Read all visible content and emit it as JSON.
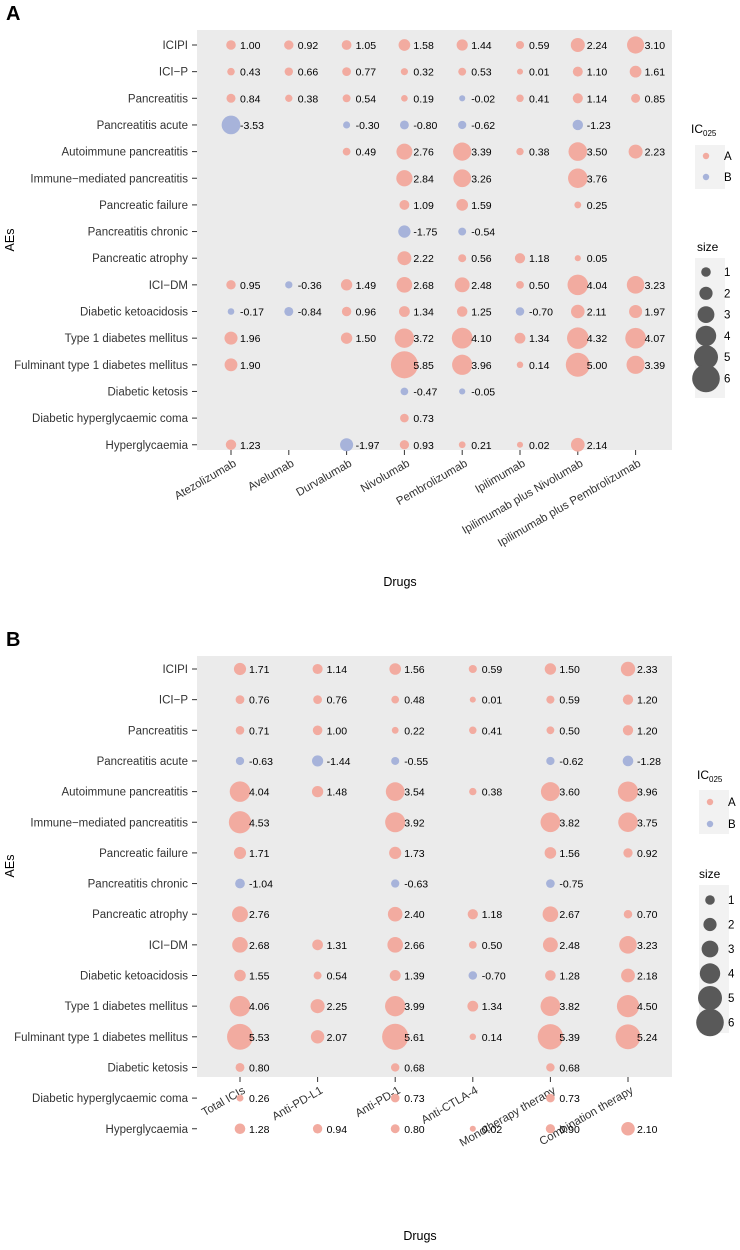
{
  "legend": {
    "color_title": "IC",
    "color_title_sub": "025",
    "groups": [
      "A",
      "B"
    ],
    "group_colors": {
      "A": "#f2aba0",
      "B": "#a7b3da"
    },
    "size_title": "size",
    "size_levels": [
      1,
      2,
      3,
      4,
      5,
      6
    ],
    "size_color": "#595959"
  },
  "chart_data": [
    {
      "panel": "A",
      "type": "scatter",
      "title": "",
      "xlabel": "Drugs",
      "ylabel": "AEs",
      "categories_x": [
        "Atezolizumab",
        "Avelumab",
        "Durvalumab",
        "Nivolumab",
        "Pembrolizumab",
        "Ipilimumab",
        "Ipilimumab plus Nivolumab",
        "Ipilimumab plus Pembrolizumab"
      ],
      "categories_y": [
        "ICIPI",
        "ICI−P",
        "Pancreatitis",
        "Pancreatitis acute",
        "Autoimmune pancreatitis",
        "Immune−mediated pancreatitis",
        "Pancreatic failure",
        "Pancreatitis chronic",
        "Pancreatic atrophy",
        "ICI−DM",
        "Diabetic ketoacidosis",
        "Type 1 diabetes mellitus",
        "Fulminant type 1 diabetes mellitus",
        "Diabetic ketosis",
        "Diabetic hyperglycaemic coma",
        "Hyperglycaemia"
      ],
      "values": [
        [
          1.0,
          0.92,
          1.05,
          1.58,
          1.44,
          0.59,
          2.24,
          3.1
        ],
        [
          0.43,
          0.66,
          0.77,
          0.32,
          0.53,
          0.01,
          1.1,
          1.61
        ],
        [
          0.84,
          0.38,
          0.54,
          0.19,
          -0.02,
          0.41,
          1.14,
          0.85
        ],
        [
          -3.53,
          null,
          -0.3,
          -0.8,
          -0.62,
          null,
          -1.23,
          null
        ],
        [
          null,
          null,
          0.49,
          2.76,
          3.39,
          0.38,
          3.5,
          2.23
        ],
        [
          null,
          null,
          null,
          2.84,
          3.26,
          null,
          3.76,
          null
        ],
        [
          null,
          null,
          null,
          1.09,
          1.59,
          null,
          0.25,
          null
        ],
        [
          null,
          null,
          null,
          -1.75,
          -0.54,
          null,
          null,
          null
        ],
        [
          null,
          null,
          null,
          2.22,
          0.56,
          1.18,
          0.05,
          null
        ],
        [
          0.95,
          -0.36,
          1.49,
          2.68,
          2.48,
          0.5,
          4.04,
          3.23
        ],
        [
          -0.17,
          -0.84,
          0.96,
          1.34,
          1.25,
          -0.7,
          2.11,
          1.97
        ],
        [
          1.96,
          null,
          1.5,
          3.72,
          4.1,
          1.34,
          4.32,
          4.07
        ],
        [
          1.9,
          null,
          null,
          5.85,
          3.96,
          0.14,
          5.0,
          3.39
        ],
        [
          null,
          null,
          null,
          -0.47,
          -0.05,
          null,
          null,
          null
        ],
        [
          null,
          null,
          null,
          0.73,
          null,
          null,
          null,
          null
        ],
        [
          1.23,
          null,
          -1.97,
          0.93,
          0.21,
          0.02,
          2.14,
          null
        ]
      ],
      "labels": [
        [
          "1.00",
          "0.92",
          "1.05",
          "1.58",
          "1.44",
          "0.59",
          "2.24",
          "3.10"
        ],
        [
          "0.43",
          "0.66",
          "0.77",
          "0.32",
          "0.53",
          "0.01",
          "1.10",
          "1.61"
        ],
        [
          "0.84",
          "0.38",
          "0.54",
          "0.19",
          "-0.02",
          "0.41",
          "1.14",
          "0.85"
        ],
        [
          "-3.53",
          null,
          "-0.30",
          "-0.80",
          "-0.62",
          null,
          "-1.23",
          null
        ],
        [
          null,
          null,
          "0.49",
          "2.76",
          "3.39",
          "0.38",
          "3.50",
          "2.23"
        ],
        [
          null,
          null,
          null,
          "2.84",
          "3.26",
          null,
          "3.76",
          null
        ],
        [
          null,
          null,
          null,
          "1.09",
          "1.59",
          null,
          "0.25",
          null
        ],
        [
          null,
          null,
          null,
          "-1.75",
          "-0.54",
          null,
          null,
          null
        ],
        [
          null,
          null,
          null,
          "2.22",
          "0.56",
          "1.18",
          "0.05",
          null
        ],
        [
          "0.95",
          "-0.36",
          "1.49",
          "2.68",
          "2.48",
          "0.50",
          "4.04",
          "3.23"
        ],
        [
          "-0.17",
          "-0.84",
          "0.96",
          "1.34",
          "1.25",
          "-0.70",
          "2.11",
          "1.97"
        ],
        [
          "1.96",
          null,
          "1.50",
          "3.72",
          "4.10",
          "1.34",
          "4.32",
          "4.07"
        ],
        [
          "1.90",
          null,
          null,
          "5.85",
          "3.96",
          "0.14",
          "5.00",
          "3.39"
        ],
        [
          null,
          null,
          null,
          "-0.47",
          "-0.05",
          null,
          null,
          null
        ],
        [
          null,
          null,
          null,
          "0.73",
          null,
          null,
          null,
          null
        ],
        [
          "1.23",
          null,
          "-1.97",
          "0.93",
          "0.21",
          "0.02",
          "2.14",
          null
        ]
      ]
    },
    {
      "panel": "B",
      "type": "scatter",
      "title": "",
      "xlabel": "Drugs",
      "ylabel": "AEs",
      "categories_x": [
        "Total ICIs",
        "Anti-PD-L1",
        "Anti-PD-1",
        "Anti-CTLA-4",
        "Monotherapy therapy",
        "Combination therapy"
      ],
      "categories_y": [
        "ICIPI",
        "ICI−P",
        "Pancreatitis",
        "Pancreatitis acute",
        "Autoimmune pancreatitis",
        "Immune−mediated pancreatitis",
        "Pancreatic failure",
        "Pancreatitis chronic",
        "Pancreatic atrophy",
        "ICI−DM",
        "Diabetic ketoacidosis",
        "Type 1 diabetes mellitus",
        "Fulminant type 1 diabetes mellitus",
        "Diabetic ketosis",
        "Diabetic hyperglycaemic coma",
        "Hyperglycaemia"
      ],
      "values": [
        [
          1.71,
          1.14,
          1.56,
          0.59,
          1.5,
          2.33
        ],
        [
          0.76,
          0.76,
          0.48,
          0.01,
          0.59,
          1.2
        ],
        [
          0.71,
          1.0,
          0.22,
          0.41,
          0.5,
          1.2
        ],
        [
          -0.63,
          -1.44,
          -0.55,
          null,
          -0.62,
          -1.28
        ],
        [
          4.04,
          1.48,
          3.54,
          0.38,
          3.6,
          3.96
        ],
        [
          4.53,
          null,
          3.92,
          null,
          3.82,
          3.75
        ],
        [
          1.71,
          null,
          1.73,
          null,
          1.56,
          0.92
        ],
        [
          -1.04,
          null,
          -0.63,
          null,
          -0.75,
          null
        ],
        [
          2.76,
          null,
          2.4,
          1.18,
          2.67,
          0.7
        ],
        [
          2.68,
          1.31,
          2.66,
          0.5,
          2.48,
          3.23
        ],
        [
          1.55,
          0.54,
          1.39,
          -0.7,
          1.28,
          2.18
        ],
        [
          4.06,
          2.25,
          3.99,
          1.34,
          3.82,
          4.5
        ],
        [
          5.53,
          2.07,
          5.61,
          0.14,
          5.39,
          5.24
        ],
        [
          0.8,
          null,
          0.68,
          null,
          0.68,
          null
        ],
        [
          0.26,
          null,
          0.73,
          null,
          0.73,
          null
        ],
        [
          1.28,
          0.94,
          0.8,
          0.02,
          0.9,
          2.1
        ]
      ],
      "labels": [
        [
          "1.71",
          "1.14",
          "1.56",
          "0.59",
          "1.50",
          "2.33"
        ],
        [
          "0.76",
          "0.76",
          "0.48",
          "0.01",
          "0.59",
          "1.20"
        ],
        [
          "0.71",
          "1.00",
          "0.22",
          "0.41",
          "0.50",
          "1.20"
        ],
        [
          "-0.63",
          "-1.44",
          "-0.55",
          null,
          "-0.62",
          "-1.28"
        ],
        [
          "4.04",
          "1.48",
          "3.54",
          "0.38",
          "3.60",
          "3.96"
        ],
        [
          "4.53",
          null,
          "3.92",
          null,
          "3.82",
          "3.75"
        ],
        [
          "1.71",
          null,
          "1.73",
          null,
          "1.56",
          "0.92"
        ],
        [
          "-1.04",
          null,
          "-0.63",
          null,
          "-0.75",
          null
        ],
        [
          "2.76",
          null,
          "2.40",
          "1.18",
          "2.67",
          "0.70"
        ],
        [
          "2.68",
          "1.31",
          "2.66",
          "0.50",
          "2.48",
          "3.23"
        ],
        [
          "1.55",
          "0.54",
          "1.39",
          "-0.70",
          "1.28",
          "2.18"
        ],
        [
          "4.06",
          "2.25",
          "3.99",
          "1.34",
          "3.82",
          "4.50"
        ],
        [
          "5.53",
          "2.07",
          "5.61",
          "0.14",
          "5.39",
          "5.24"
        ],
        [
          "0.80",
          null,
          "0.68",
          null,
          "0.68",
          null
        ],
        [
          "0.26",
          null,
          "0.73",
          null,
          "0.73",
          null
        ],
        [
          "1.28",
          "0.94",
          "0.80",
          "0.02",
          "0.90",
          "2.10"
        ]
      ]
    }
  ]
}
